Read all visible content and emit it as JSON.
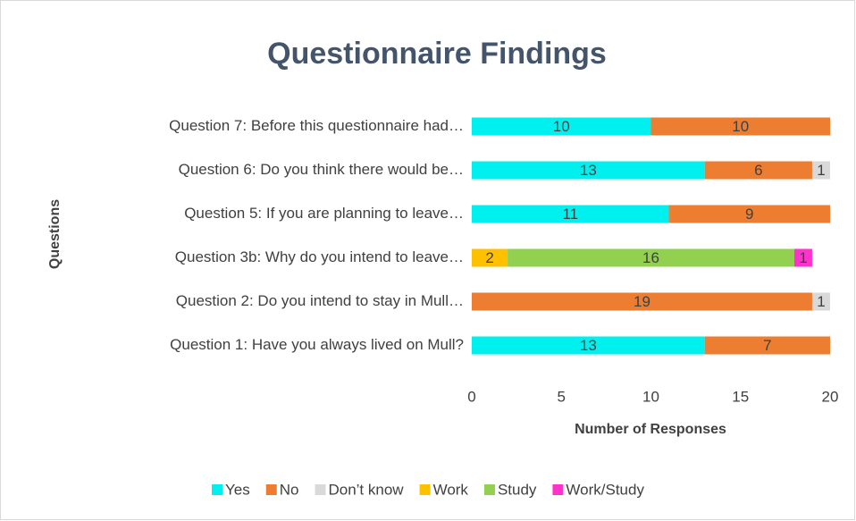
{
  "chart_data": {
    "type": "stacked_barh",
    "title": "Questionnaire Findings",
    "x_label": "Number of Responses",
    "y_label": "Questions",
    "categories": [
      "Question 7: Before this questionnaire had…",
      "Question 6: Do you think there would be…",
      "Question 5: If you are planning to leave…",
      "Question 3b: Why do you intend to leave…",
      "Question 2: Do you intend to stay in Mull…",
      "Question 1: Have you always lived on Mull?"
    ],
    "series": [
      {
        "name": "Yes",
        "color": "#00f0f0",
        "values": [
          10,
          13,
          11,
          null,
          null,
          13
        ]
      },
      {
        "name": "No",
        "color": "#ed7d31",
        "values": [
          10,
          6,
          9,
          null,
          19,
          7
        ]
      },
      {
        "name": "Don’t know",
        "color": "#d9d9d9",
        "values": [
          null,
          1,
          null,
          null,
          1,
          null
        ]
      },
      {
        "name": "Work",
        "color": "#ffc000",
        "values": [
          null,
          null,
          null,
          2,
          null,
          null
        ]
      },
      {
        "name": "Study",
        "color": "#92d050",
        "values": [
          null,
          null,
          null,
          16,
          null,
          null
        ]
      },
      {
        "name": "Work/Study",
        "color": "#ff33cc",
        "values": [
          null,
          null,
          null,
          1,
          null,
          null
        ]
      }
    ],
    "xlim": [
      0,
      20
    ],
    "xticks": [
      0,
      5,
      10,
      15,
      20
    ],
    "grid": false,
    "legend": "bottom"
  }
}
